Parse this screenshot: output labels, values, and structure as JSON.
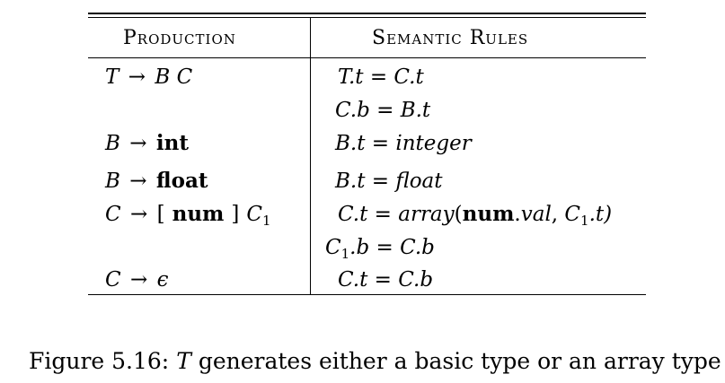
{
  "header": {
    "production": "Production",
    "semantic_rules": "Semantic Rules"
  },
  "rows": [
    {
      "lhs": "T",
      "arrow": "→",
      "rhs_a": "B",
      "rhs_b": "C",
      "rule": "T.t = C.t"
    },
    {
      "rule": "C.b = B.t"
    },
    {
      "lhs": "B",
      "arrow": "→",
      "rhs_kw": "int",
      "rule_lhs": "B.t = ",
      "rule_val": "integer"
    },
    {
      "lhs": "B",
      "arrow": "→",
      "rhs_kw": "float",
      "rule_lhs": "B.t = ",
      "rule_val": "float"
    },
    {
      "lhs": "C",
      "arrow": "→",
      "rhs_lb": "[",
      "rhs_kw": "num",
      "rhs_rb": "]",
      "rhs_c": "C",
      "rhs_sub": "1",
      "rule_lhs": "C.t = ",
      "rule_fn": "array",
      "rule_open": "(",
      "rule_kw": "num",
      "rule_dot": ".",
      "rule_val": "val",
      "rule_comma": ",",
      "rule_c": "C",
      "rule_sub": "1",
      "rule_tail": ".t)"
    },
    {
      "rule_c": "C",
      "rule_sub": "1",
      "rule_tail": ".b = C.b"
    },
    {
      "lhs": "C",
      "arrow": "→",
      "rhs_eps": "ϵ",
      "rule": "C.t = C.b"
    }
  ],
  "caption": {
    "prefix": "Figure 5.16: ",
    "var": "T",
    "text": " generates either a basic type or an array type"
  }
}
